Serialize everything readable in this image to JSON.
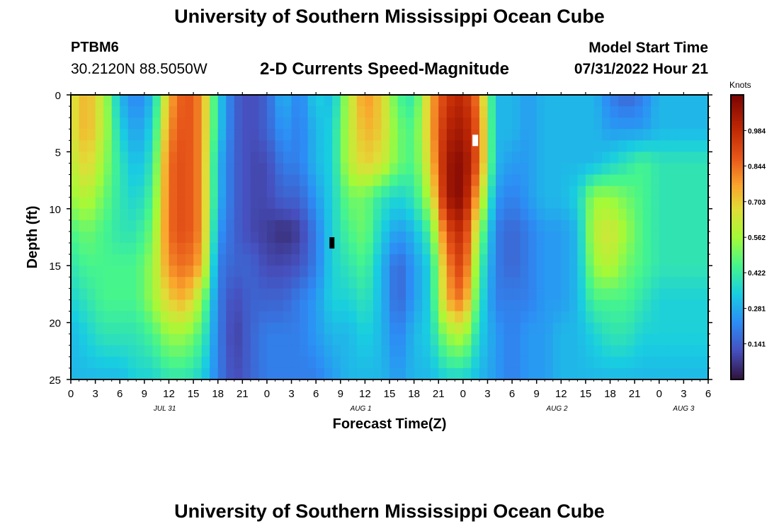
{
  "header": {
    "title": "University of Southern Mississippi Ocean Cube",
    "station": "PTBM6",
    "coordinates": "30.2120N  88.5050W",
    "subtitle": "2-D Currents Speed-Magnitude",
    "model_start_label": "Model Start Time",
    "model_start_value": "07/31/2022 Hour 21"
  },
  "footer": {
    "title": "University of Southern Mississippi Ocean Cube"
  },
  "chart_data": {
    "type": "heatmap",
    "title": "2-D Currents Speed-Magnitude",
    "xlabel": "Forecast Time(Z)",
    "ylabel": "Depth (ft)",
    "x_unit": "hours since Jul 31 00Z",
    "xlim": [
      0,
      78
    ],
    "ylim": [
      0,
      25
    ],
    "y_inverted": true,
    "x_ticks": [
      0,
      3,
      6,
      9,
      12,
      15,
      18,
      21,
      24,
      27,
      30,
      33,
      36,
      39,
      42,
      45,
      48,
      51,
      54,
      57,
      60,
      63,
      66,
      69,
      72,
      75,
      78
    ],
    "x_tick_labels": [
      "0",
      "3",
      "6",
      "9",
      "12",
      "15",
      "18",
      "21",
      "0",
      "3",
      "6",
      "9",
      "12",
      "15",
      "18",
      "21",
      "0",
      "3",
      "6",
      "9",
      "12",
      "15",
      "18",
      "21",
      "0",
      "3",
      "6"
    ],
    "y_ticks": [
      0,
      5,
      10,
      15,
      20,
      25
    ],
    "y_tick_labels": [
      "0",
      "5",
      "10",
      "15",
      "20",
      "25"
    ],
    "date_labels": [
      {
        "text": "JUL 31",
        "x": 11.5
      },
      {
        "text": "AUG 1",
        "x": 35.5
      },
      {
        "text": "AUG 2",
        "x": 59.5
      },
      {
        "text": "AUG 3",
        "x": 75
      }
    ],
    "colorbar": {
      "label": "Knots",
      "min": 0.0,
      "max": 1.125,
      "ticks": [
        0.141,
        0.281,
        0.422,
        0.562,
        0.703,
        0.844,
        0.984
      ],
      "tick_labels": [
        "0.141",
        "0.281",
        "0.422",
        "0.562",
        "0.703",
        "0.844",
        "0.984"
      ]
    },
    "depth_columns": [
      {
        "d": 0,
        "v": [
          0.65,
          0.75,
          0.6,
          0.3,
          0.2,
          0.3,
          0.75,
          0.9,
          0.8,
          0.35,
          0.15,
          0.1,
          0.15,
          0.3,
          0.2,
          0.35,
          0.3,
          0.6,
          0.8,
          0.7,
          0.45,
          0.4,
          0.75,
          0.95,
          1.0,
          0.8,
          0.3,
          0.3,
          0.25,
          0.3,
          0.3,
          0.3,
          0.3,
          0.2,
          0.15,
          0.2,
          0.3
        ]
      },
      {
        "d": 3,
        "v": [
          0.65,
          0.75,
          0.6,
          0.35,
          0.25,
          0.35,
          0.8,
          0.9,
          0.8,
          0.35,
          0.15,
          0.1,
          0.15,
          0.25,
          0.2,
          0.3,
          0.35,
          0.6,
          0.75,
          0.7,
          0.5,
          0.45,
          0.75,
          1.0,
          1.05,
          0.85,
          0.3,
          0.3,
          0.25,
          0.3,
          0.3,
          0.3,
          0.3,
          0.25,
          0.25,
          0.25,
          0.3
        ]
      },
      {
        "d": 6,
        "v": [
          0.6,
          0.7,
          0.55,
          0.4,
          0.3,
          0.4,
          0.85,
          0.9,
          0.8,
          0.3,
          0.15,
          0.1,
          0.1,
          0.2,
          0.2,
          0.3,
          0.35,
          0.6,
          0.7,
          0.65,
          0.5,
          0.45,
          0.7,
          1.05,
          1.1,
          0.85,
          0.3,
          0.25,
          0.25,
          0.3,
          0.3,
          0.3,
          0.3,
          0.35,
          0.4,
          0.45,
          0.4
        ]
      },
      {
        "d": 9,
        "v": [
          0.55,
          0.6,
          0.5,
          0.4,
          0.35,
          0.45,
          0.85,
          0.9,
          0.8,
          0.3,
          0.15,
          0.1,
          0.1,
          0.15,
          0.15,
          0.25,
          0.35,
          0.5,
          0.5,
          0.4,
          0.35,
          0.4,
          0.6,
          1.05,
          1.1,
          0.7,
          0.25,
          0.2,
          0.25,
          0.3,
          0.3,
          0.35,
          0.55,
          0.55,
          0.5,
          0.45,
          0.4
        ]
      },
      {
        "d": 12,
        "v": [
          0.45,
          0.5,
          0.45,
          0.4,
          0.4,
          0.5,
          0.85,
          0.9,
          0.8,
          0.25,
          0.15,
          0.1,
          0.08,
          0.05,
          0.08,
          0.2,
          0.35,
          0.45,
          0.5,
          0.35,
          0.25,
          0.3,
          0.45,
          0.9,
          1.0,
          0.55,
          0.2,
          0.15,
          0.2,
          0.25,
          0.25,
          0.3,
          0.6,
          0.65,
          0.55,
          0.45,
          0.4
        ]
      },
      {
        "d": 15,
        "v": [
          0.4,
          0.45,
          0.45,
          0.45,
          0.45,
          0.55,
          0.8,
          0.85,
          0.75,
          0.2,
          0.15,
          0.15,
          0.1,
          0.1,
          0.12,
          0.2,
          0.35,
          0.4,
          0.45,
          0.3,
          0.15,
          0.25,
          0.35,
          0.8,
          0.95,
          0.45,
          0.2,
          0.15,
          0.2,
          0.25,
          0.25,
          0.3,
          0.55,
          0.6,
          0.5,
          0.45,
          0.4
        ]
      },
      {
        "d": 18,
        "v": [
          0.35,
          0.4,
          0.45,
          0.45,
          0.45,
          0.55,
          0.7,
          0.75,
          0.55,
          0.2,
          0.1,
          0.15,
          0.15,
          0.15,
          0.2,
          0.25,
          0.35,
          0.35,
          0.4,
          0.3,
          0.15,
          0.25,
          0.35,
          0.75,
          0.85,
          0.4,
          0.2,
          0.2,
          0.2,
          0.25,
          0.25,
          0.3,
          0.45,
          0.45,
          0.45,
          0.4,
          0.35
        ]
      },
      {
        "d": 21,
        "v": [
          0.3,
          0.35,
          0.4,
          0.4,
          0.4,
          0.45,
          0.55,
          0.55,
          0.45,
          0.2,
          0.08,
          0.15,
          0.2,
          0.2,
          0.2,
          0.25,
          0.3,
          0.3,
          0.35,
          0.3,
          0.2,
          0.3,
          0.35,
          0.55,
          0.6,
          0.35,
          0.25,
          0.2,
          0.25,
          0.25,
          0.3,
          0.3,
          0.35,
          0.4,
          0.4,
          0.35,
          0.35
        ]
      },
      {
        "d": 25,
        "v": [
          0.3,
          0.3,
          0.3,
          0.3,
          0.35,
          0.35,
          0.4,
          0.4,
          0.35,
          0.2,
          0.1,
          0.15,
          0.2,
          0.2,
          0.2,
          0.2,
          0.25,
          0.3,
          0.3,
          0.3,
          0.25,
          0.3,
          0.3,
          0.35,
          0.35,
          0.3,
          0.25,
          0.2,
          0.25,
          0.25,
          0.3,
          0.3,
          0.3,
          0.3,
          0.3,
          0.3,
          0.3
        ]
      }
    ],
    "column_hours": [
      0,
      2,
      4,
      6,
      8,
      10,
      12,
      14,
      16,
      18,
      20,
      22,
      24,
      26,
      28,
      30,
      32,
      34,
      36,
      38,
      40,
      42,
      44,
      46,
      48,
      50,
      52,
      54,
      56,
      58,
      60,
      62,
      64,
      66,
      68,
      70,
      72
    ]
  }
}
